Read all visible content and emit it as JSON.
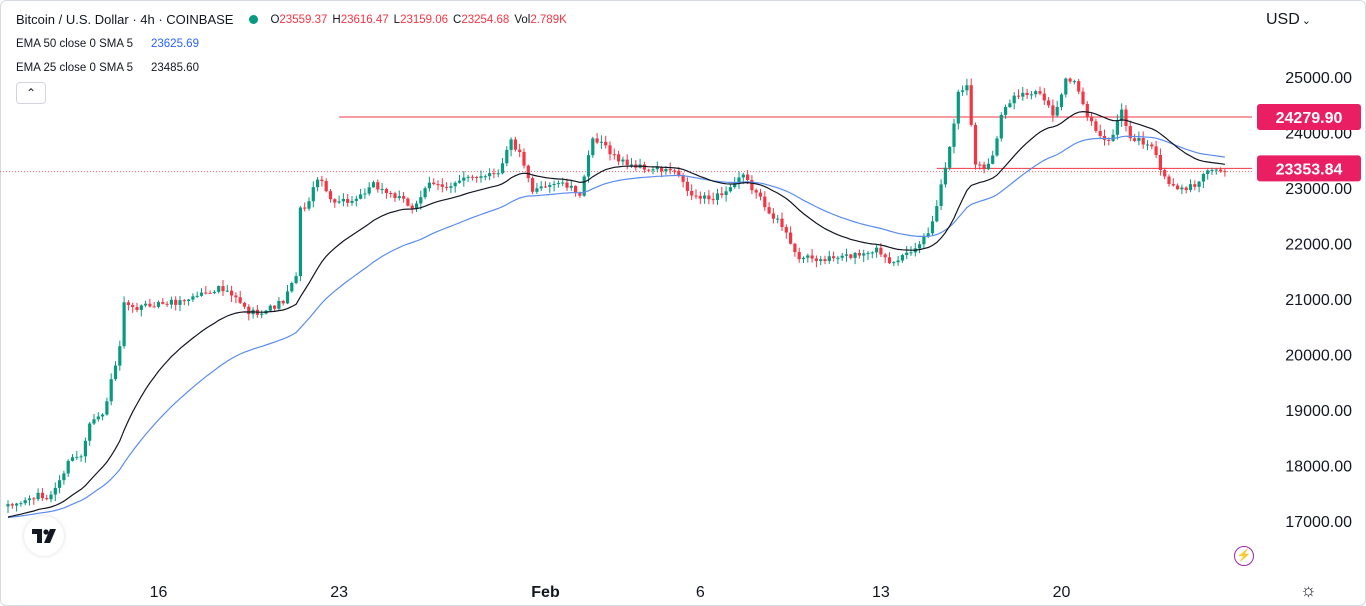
{
  "header": {
    "symbol": "Bitcoin / U.S. Dollar · 4h · COINBASE",
    "ohlc": [
      {
        "k": "O",
        "v": "23559.37"
      },
      {
        "k": "H",
        "v": "23616.47"
      },
      {
        "k": "L",
        "v": "23159.06"
      },
      {
        "k": "C",
        "v": "23254.68"
      },
      {
        "k": "Vol",
        "v": "2.789K"
      }
    ]
  },
  "indicators": [
    {
      "label": "EMA 50 close 0 SMA 5",
      "value": "23625.69"
    },
    {
      "label": "EMA 25 close 0 SMA 5",
      "value": "23485.60"
    }
  ],
  "collapse_glyph": "⌃",
  "currency": "USD",
  "currency_glyph": "⌄",
  "settings_glyph": "☼",
  "alert_glyph": "⚡",
  "colors": {
    "up": "#089981",
    "down": "#f23645",
    "ema50": "#5b8def",
    "ema25": "#131722",
    "resistance": "#f23645",
    "price_tag": "#e91e63"
  },
  "chart_data": {
    "type": "candlestick",
    "interval": "4h",
    "ylim": [
      16300,
      25700
    ],
    "y_ticks": [
      "25000.00",
      "24000.00",
      "23000.00",
      "22000.00",
      "21000.00",
      "20000.00",
      "19000.00",
      "18000.00",
      "17000.00"
    ],
    "x_labels": [
      {
        "label": "16",
        "bar": 35
      },
      {
        "label": "23",
        "bar": 77
      },
      {
        "label": "Feb",
        "bar": 125
      },
      {
        "label": "6",
        "bar": 161
      },
      {
        "label": "13",
        "bar": 203
      },
      {
        "label": "20",
        "bar": 245
      }
    ],
    "horizontal_lines": [
      {
        "value": 24279.9,
        "label": "24279.90",
        "from_bar": 77
      },
      {
        "value": 23353.84,
        "label": "23353.84",
        "from_bar": 216
      }
    ],
    "close_path": [
      [
        0,
        17250
      ],
      [
        7,
        17450
      ],
      [
        9,
        17400
      ],
      [
        12,
        17700
      ],
      [
        14,
        18100
      ],
      [
        17,
        18200
      ],
      [
        19,
        18800
      ],
      [
        22,
        18900
      ],
      [
        24,
        19500
      ],
      [
        26,
        20100
      ],
      [
        27,
        20900
      ],
      [
        29,
        20800
      ],
      [
        33,
        20900
      ],
      [
        40,
        20950
      ],
      [
        45,
        21100
      ],
      [
        49,
        21200
      ],
      [
        53,
        21000
      ],
      [
        56,
        20750
      ],
      [
        60,
        20800
      ],
      [
        64,
        20950
      ],
      [
        67,
        21400
      ],
      [
        68,
        22600
      ],
      [
        70,
        22750
      ],
      [
        72,
        23200
      ],
      [
        75,
        22800
      ],
      [
        81,
        22750
      ],
      [
        85,
        23050
      ],
      [
        90,
        22850
      ],
      [
        94,
        22650
      ],
      [
        98,
        23050
      ],
      [
        103,
        23050
      ],
      [
        108,
        23200
      ],
      [
        114,
        23300
      ],
      [
        117,
        23850
      ],
      [
        119,
        23600
      ],
      [
        122,
        22900
      ],
      [
        124,
        23050
      ],
      [
        128,
        23100
      ],
      [
        133,
        22900
      ],
      [
        136,
        23850
      ],
      [
        139,
        23750
      ],
      [
        142,
        23500
      ],
      [
        148,
        23350
      ],
      [
        155,
        23300
      ],
      [
        159,
        22850
      ],
      [
        163,
        22800
      ],
      [
        167,
        22950
      ],
      [
        171,
        23200
      ],
      [
        176,
        22700
      ],
      [
        180,
        22300
      ],
      [
        184,
        21750
      ],
      [
        188,
        21700
      ],
      [
        194,
        21750
      ],
      [
        197,
        21800
      ],
      [
        202,
        21900
      ],
      [
        205,
        21700
      ],
      [
        210,
        21800
      ],
      [
        214,
        22200
      ],
      [
        216,
        22700
      ],
      [
        218,
        23400
      ],
      [
        220,
        24200
      ],
      [
        221,
        24700
      ],
      [
        223,
        24850
      ],
      [
        225,
        23450
      ],
      [
        227,
        23350
      ],
      [
        229,
        23600
      ],
      [
        231,
        24300
      ],
      [
        234,
        24700
      ],
      [
        240,
        24700
      ],
      [
        243,
        24300
      ],
      [
        246,
        24950
      ],
      [
        248,
        24900
      ],
      [
        251,
        24300
      ],
      [
        253,
        24050
      ],
      [
        256,
        23800
      ],
      [
        259,
        24400
      ],
      [
        261,
        23900
      ],
      [
        265,
        23800
      ],
      [
        267,
        23600
      ],
      [
        269,
        23150
      ],
      [
        272,
        22950
      ],
      [
        276,
        23050
      ],
      [
        278,
        23300
      ],
      [
        281,
        23350
      ],
      [
        283,
        23250
      ]
    ]
  }
}
